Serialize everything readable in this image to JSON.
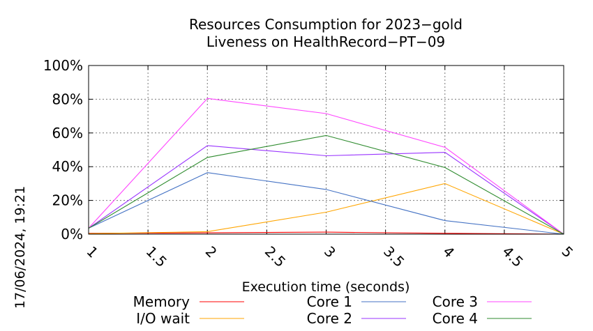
{
  "chart_data": {
    "type": "line",
    "title_lines": [
      "Resources Consumption for 2023−gold",
      "Liveness on HealthRecord−PT−09"
    ],
    "xlabel": "Execution time (seconds)",
    "ylabel": "",
    "xlim": [
      1,
      5
    ],
    "ylim": [
      0,
      100
    ],
    "x_ticks": [
      "1",
      "1.5",
      "2",
      "2.5",
      "3",
      "3.5",
      "4",
      "4.5",
      "5"
    ],
    "y_ticks": [
      "0%",
      "20%",
      "40%",
      "60%",
      "80%",
      "100%"
    ],
    "grid": true,
    "legend_position": "bottom",
    "timestamp": "17/06/2024, 19:21",
    "x": [
      1,
      2,
      3,
      4,
      5
    ],
    "series": [
      {
        "name": "Memory",
        "color": "#ff0000",
        "values": [
          0.5,
          0.8,
          1.2,
          0.5,
          0
        ]
      },
      {
        "name": "I/O wait",
        "color": "#ffa500",
        "values": [
          0.3,
          1.5,
          13,
          30,
          0
        ]
      },
      {
        "name": "Core 1",
        "color": "#4472c4",
        "values": [
          3.5,
          36.5,
          26.5,
          8,
          0
        ]
      },
      {
        "name": "Core 2",
        "color": "#9933ff",
        "values": [
          3.5,
          52.5,
          46.5,
          48.5,
          0
        ]
      },
      {
        "name": "Core 3",
        "color": "#ff44ff",
        "values": [
          3.5,
          80.5,
          71.5,
          51.5,
          0
        ]
      },
      {
        "name": "Core 4",
        "color": "#2e8b2e",
        "values": [
          3.5,
          45.5,
          58.5,
          39.5,
          0
        ]
      }
    ]
  }
}
